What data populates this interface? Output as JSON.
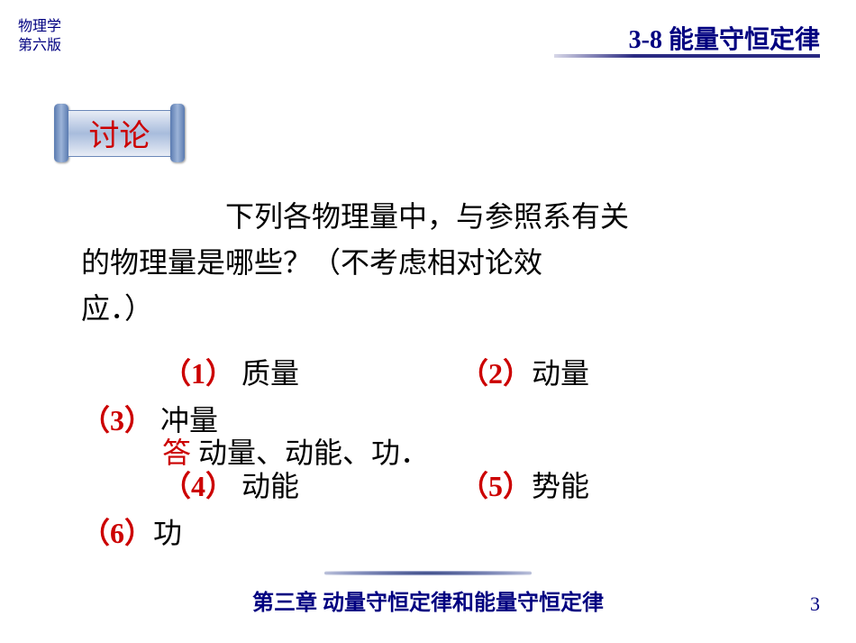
{
  "colors": {
    "navy": "#000080",
    "red": "#cc0000",
    "black": "#000000"
  },
  "header": {
    "book_title": "物理学",
    "edition": "第六版",
    "section": "3-8  能量守恒定律"
  },
  "scroll": {
    "label": "讨论"
  },
  "content": {
    "question_line1": "下列各物理量中，与参照系有关",
    "question_line2": "的物理量是哪些？（不考虑相对论效",
    "question_line3": "应．）",
    "items": {
      "n1": "（1）",
      "t1": " 质量",
      "n2": "（2）",
      "t2": "动量",
      "n3": "（3）",
      "t3": " 冲量",
      "n4": "（4）",
      "t4": " 动能",
      "n5": "（5）",
      "t5": "势能",
      "n6": "（6）",
      "t6": "功"
    },
    "answer_label": "答",
    "answer_text": "  动量、动能、功．"
  },
  "footer": {
    "chapter": "第三章  动量守恒定律和能量守恒定律",
    "page": "3"
  }
}
